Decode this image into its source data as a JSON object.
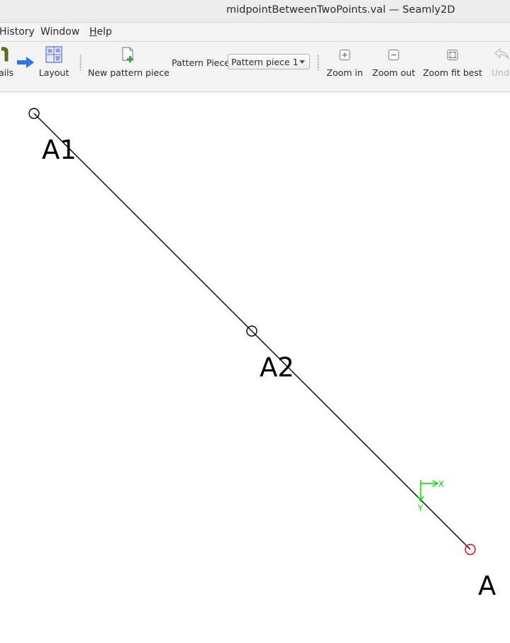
{
  "window": {
    "title": "midpointBetweenTwoPoints.val — Seamly2D"
  },
  "menubar": {
    "items": [
      {
        "label": "History"
      },
      {
        "label": "Window"
      },
      {
        "label_mnemonic": "H",
        "label_rest": "elp"
      }
    ]
  },
  "toolbar": {
    "details_label": "ails",
    "layout_label": "Layout",
    "new_pattern_piece_label": "New pattern piece",
    "pattern_piece_label": "Pattern Piece:",
    "pattern_piece_value": "Pattern piece 1",
    "zoom_in_label": "Zoom in",
    "zoom_out_label": "Zoom out",
    "zoom_fit_best_label": "Zoom fit best",
    "undo_label": "Undo"
  },
  "canvas": {
    "points": [
      {
        "name": "A1",
        "color": "#000000"
      },
      {
        "name": "A2",
        "color": "#000000"
      },
      {
        "name": "A",
        "color": "#e00000"
      }
    ],
    "axis": {
      "x_label": "X",
      "y_label": "Y",
      "color": "#00dd00"
    },
    "line_color": "#000000"
  }
}
